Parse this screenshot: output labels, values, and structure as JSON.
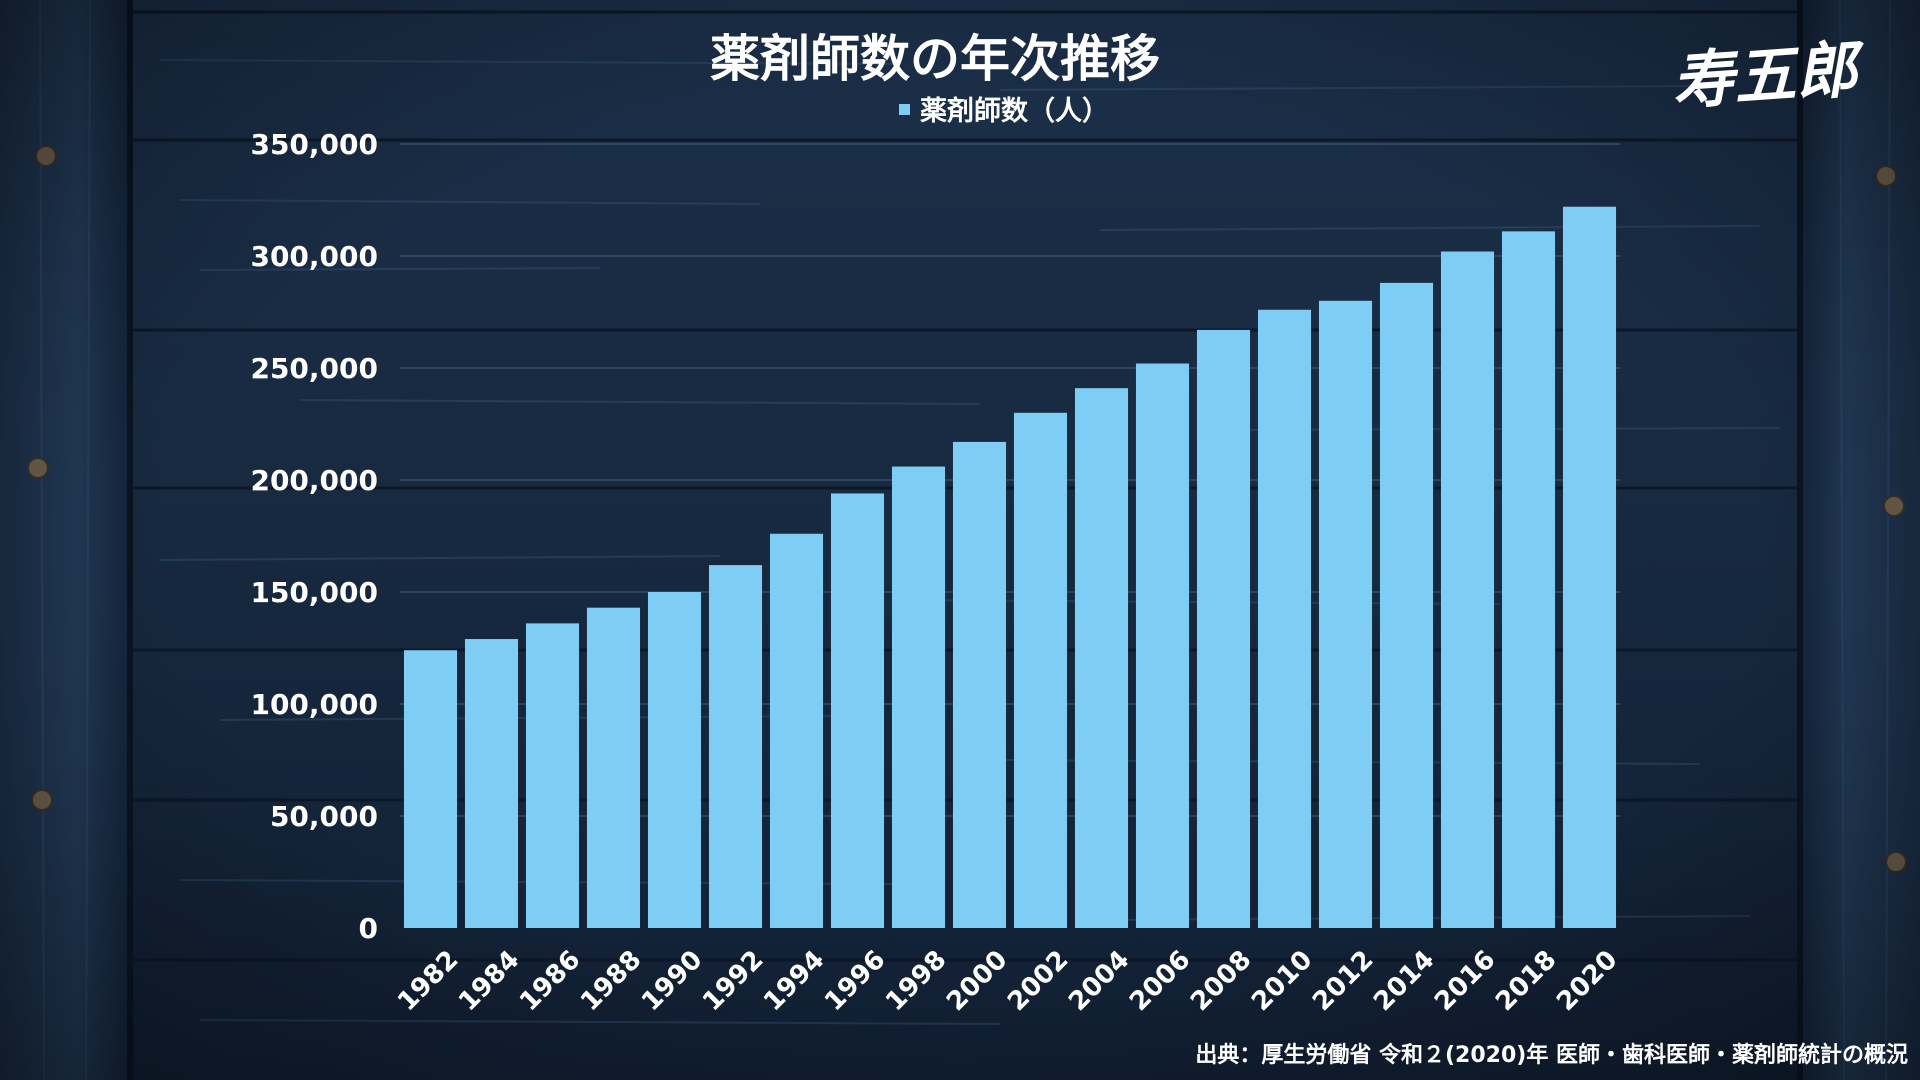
{
  "chart_data": {
    "type": "bar",
    "title": "薬剤師数の年次推移",
    "legend": {
      "entries": [
        "薬剤師数（人）"
      ],
      "placement": "top-center"
    },
    "categories": [
      "1982",
      "1984",
      "1986",
      "1988",
      "1990",
      "1992",
      "1994",
      "1996",
      "1998",
      "2000",
      "2002",
      "2004",
      "2006",
      "2008",
      "2010",
      "2012",
      "2014",
      "2016",
      "2018",
      "2020"
    ],
    "series": [
      {
        "name": "薬剤師数（人）",
        "color": "#7ecdf4",
        "values": [
          124000,
          129000,
          136000,
          143000,
          150000,
          162000,
          176000,
          194000,
          206000,
          217000,
          230000,
          241000,
          252000,
          267000,
          276000,
          280000,
          288000,
          302000,
          311000,
          322000
        ]
      }
    ],
    "ylim": [
      0,
      350000
    ],
    "y_ticks": [
      {
        "value": 0,
        "label": "0"
      },
      {
        "value": 50000,
        "label": "50,000"
      },
      {
        "value": 100000,
        "label": "100,000"
      },
      {
        "value": 150000,
        "label": "150,000"
      },
      {
        "value": 200000,
        "label": "200,000"
      },
      {
        "value": 250000,
        "label": "250,000"
      },
      {
        "value": 300000,
        "label": "300,000"
      },
      {
        "value": 350000,
        "label": "350,000"
      }
    ],
    "grid": true,
    "xlabel": "",
    "ylabel": ""
  },
  "source_note": "出典：厚生労働省 令和２(2020)年 医師・歯科医師・薬剤師統計の概況",
  "logo": "寿五郎",
  "colors": {
    "bar": "#7ecdf4",
    "text": "#ffffff",
    "background": "#12243b"
  }
}
